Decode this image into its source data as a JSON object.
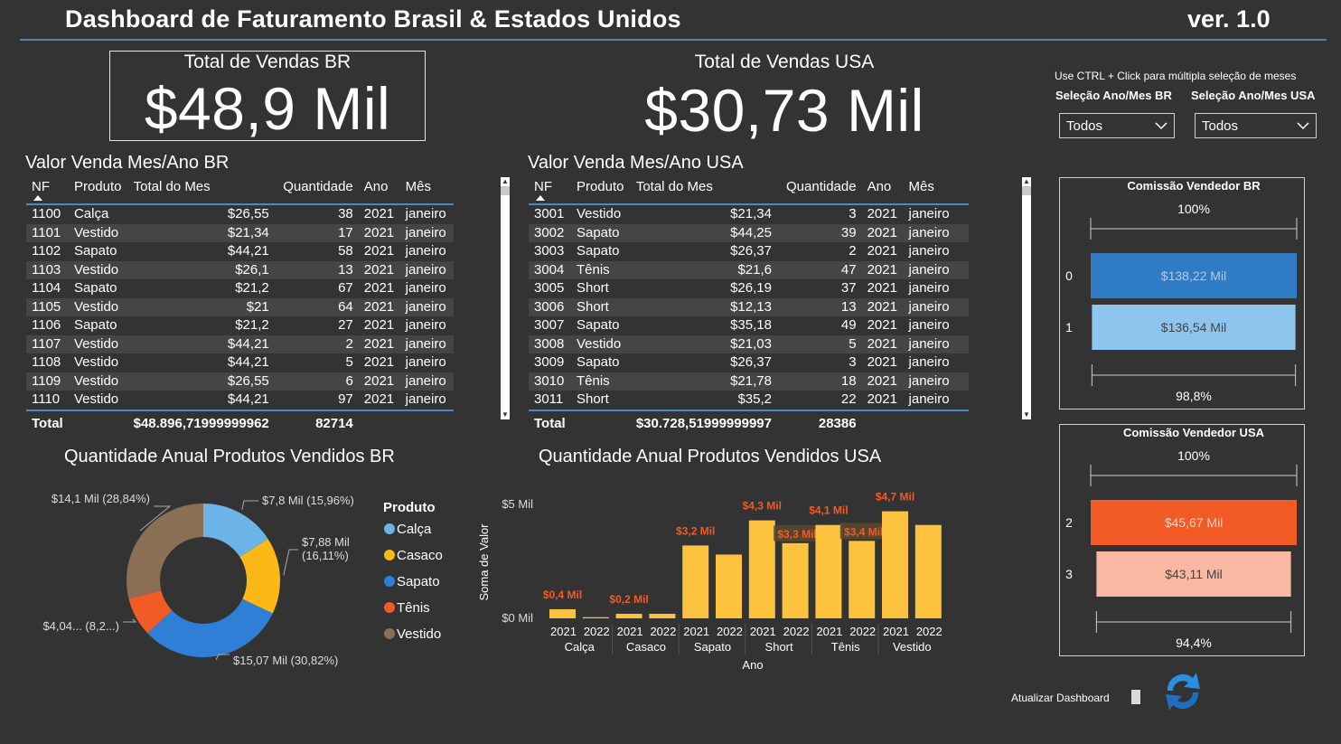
{
  "header": {
    "title": "Dashboard de Faturamento Brasil & Estados Unidos",
    "version": "ver. 1.0"
  },
  "kpi": {
    "br": {
      "label": "Total de Vendas BR",
      "value": "$48,9 Mil"
    },
    "usa": {
      "label": "Total de Vendas USA",
      "value": "$30,73 Mil"
    }
  },
  "slicers": {
    "hint": "Use CTRL + Click para múltipla seleção de meses",
    "br": {
      "label": "Seleção Ano/Mes BR",
      "value": "Todos"
    },
    "usa": {
      "label": "Seleção Ano/Mes USA",
      "value": "Todos"
    }
  },
  "table_br": {
    "title": "Valor Venda Mes/Ano BR",
    "columns": [
      "NF",
      "Produto",
      "Total do Mes",
      "Quantidade",
      "Ano",
      "Mês"
    ],
    "rows": [
      [
        "1100",
        "Calça",
        "$26,55",
        "38",
        "2021",
        "janeiro"
      ],
      [
        "1101",
        "Vestido",
        "$21,34",
        "17",
        "2021",
        "janeiro"
      ],
      [
        "1102",
        "Sapato",
        "$44,21",
        "58",
        "2021",
        "janeiro"
      ],
      [
        "1103",
        "Vestido",
        "$26,1",
        "13",
        "2021",
        "janeiro"
      ],
      [
        "1104",
        "Sapato",
        "$21,2",
        "67",
        "2021",
        "janeiro"
      ],
      [
        "1105",
        "Vestido",
        "$21",
        "64",
        "2021",
        "janeiro"
      ],
      [
        "1106",
        "Sapato",
        "$21,2",
        "27",
        "2021",
        "janeiro"
      ],
      [
        "1107",
        "Vestido",
        "$44,21",
        "2",
        "2021",
        "janeiro"
      ],
      [
        "1108",
        "Vestido",
        "$44,21",
        "5",
        "2021",
        "janeiro"
      ],
      [
        "1109",
        "Vestido",
        "$26,55",
        "6",
        "2021",
        "janeiro"
      ],
      [
        "1110",
        "Vestido",
        "$44,21",
        "97",
        "2021",
        "janeiro"
      ]
    ],
    "total": {
      "label": "Total",
      "value": "$48.896,71999999962",
      "quantity": "82714"
    }
  },
  "table_usa": {
    "title": "Valor Venda Mes/Ano USA",
    "columns": [
      "NF",
      "Produto",
      "Total do Mes",
      "Quantidade",
      "Ano",
      "Mês"
    ],
    "rows": [
      [
        "3001",
        "Vestido",
        "$21,34",
        "3",
        "2021",
        "janeiro"
      ],
      [
        "3002",
        "Sapato",
        "$44,25",
        "39",
        "2021",
        "janeiro"
      ],
      [
        "3003",
        "Sapato",
        "$26,37",
        "2",
        "2021",
        "janeiro"
      ],
      [
        "3004",
        "Tênis",
        "$21,6",
        "47",
        "2021",
        "janeiro"
      ],
      [
        "3005",
        "Short",
        "$26,19",
        "37",
        "2021",
        "janeiro"
      ],
      [
        "3006",
        "Short",
        "$12,13",
        "13",
        "2021",
        "janeiro"
      ],
      [
        "3007",
        "Sapato",
        "$35,18",
        "49",
        "2021",
        "janeiro"
      ],
      [
        "3008",
        "Vestido",
        "$21,03",
        "5",
        "2021",
        "janeiro"
      ],
      [
        "3009",
        "Sapato",
        "$26,37",
        "3",
        "2021",
        "janeiro"
      ],
      [
        "3010",
        "Tênis",
        "$21,78",
        "18",
        "2021",
        "janeiro"
      ],
      [
        "3011",
        "Short",
        "$35,2",
        "22",
        "2021",
        "janeiro"
      ]
    ],
    "total": {
      "label": "Total",
      "value": "$30.728,51999999997",
      "quantity": "28386"
    }
  },
  "chart_data": [
    {
      "type": "pie",
      "title": "Quantidade Anual Produtos Vendidos BR",
      "legend_title": "Produto",
      "legend_position": "right",
      "slices": [
        {
          "name": "Calça",
          "value": 15.96,
          "label": "$7,8 Mil (15,96%)",
          "color": "#6cb3e8"
        },
        {
          "name": "Casaco",
          "value": 16.11,
          "label": "$7,88 Mil (16,11%)",
          "color": "#fbb816"
        },
        {
          "name": "Sapato",
          "value": 30.82,
          "label": "$15,07 Mil (30,82%)",
          "color": "#2f7fd6"
        },
        {
          "name": "Tênis",
          "value": 8.27,
          "label": "$4,04... (8,2...)",
          "color": "#f25a26"
        },
        {
          "name": "Vestido",
          "value": 28.84,
          "label": "$14,1 Mil (28,84%)",
          "color": "#8a6f55"
        }
      ]
    },
    {
      "type": "bar",
      "title": "Quantidade Anual Produtos Vendidos USA",
      "xlabel": "Ano",
      "ylabel": "Soma de Valor",
      "yticks": [
        "$0 Mil",
        "$5 Mil"
      ],
      "ylim": [
        0,
        5
      ],
      "groups": [
        "Calça",
        "Casaco",
        "Sapato",
        "Short",
        "Tênis",
        "Vestido"
      ],
      "color": "#fdc33e",
      "label_color": "#f25a26",
      "bars": [
        {
          "group": "Calça",
          "year": "2021",
          "value": 0.4,
          "label": "$0,4 Mil"
        },
        {
          "group": "Calça",
          "year": "2022",
          "value": 0.05,
          "label": ""
        },
        {
          "group": "Casaco",
          "year": "2021",
          "value": 0.2,
          "label": "$0,2 Mil"
        },
        {
          "group": "Casaco",
          "year": "2022",
          "value": 0.2,
          "label": ""
        },
        {
          "group": "Sapato",
          "year": "2021",
          "value": 3.2,
          "label": "$3,2 Mil"
        },
        {
          "group": "Sapato",
          "year": "2022",
          "value": 2.8,
          "label": ""
        },
        {
          "group": "Short",
          "year": "2021",
          "value": 4.3,
          "label": "$4,3 Mil"
        },
        {
          "group": "Short",
          "year": "2022",
          "value": 3.3,
          "label": "$3,3 Mil"
        },
        {
          "group": "Tênis",
          "year": "2021",
          "value": 4.1,
          "label": "$4,1 Mil"
        },
        {
          "group": "Tênis",
          "year": "2022",
          "value": 3.4,
          "label": "$3,4 Mil"
        },
        {
          "group": "Vestido",
          "year": "2021",
          "value": 4.7,
          "label": "$4,7 Mil"
        },
        {
          "group": "Vestido",
          "year": "2022",
          "value": 4.1,
          "label": ""
        }
      ]
    },
    {
      "type": "bar",
      "title": "Comissão Vendedor BR",
      "top_label": "100%",
      "bottom_label": "98,8%",
      "bars": [
        {
          "category": "0",
          "value": 138.22,
          "label": "$138,22 Mil",
          "color": "#2f7bc5"
        },
        {
          "category": "1",
          "value": 136.54,
          "label": "$136,54 Mil",
          "color": "#8ec5ef"
        }
      ]
    },
    {
      "type": "bar",
      "title": "Comissão Vendedor USA",
      "top_label": "100%",
      "bottom_label": "94,4%",
      "bars": [
        {
          "category": "2",
          "value": 45.67,
          "label": "$45,67 Mil",
          "color": "#f25a26"
        },
        {
          "category": "3",
          "value": 43.11,
          "label": "$43,11 Mil",
          "color": "#f8b8a2"
        }
      ]
    }
  ],
  "refresh": {
    "label": "Atualizar Dashboard",
    "icon": "refresh-icon"
  }
}
